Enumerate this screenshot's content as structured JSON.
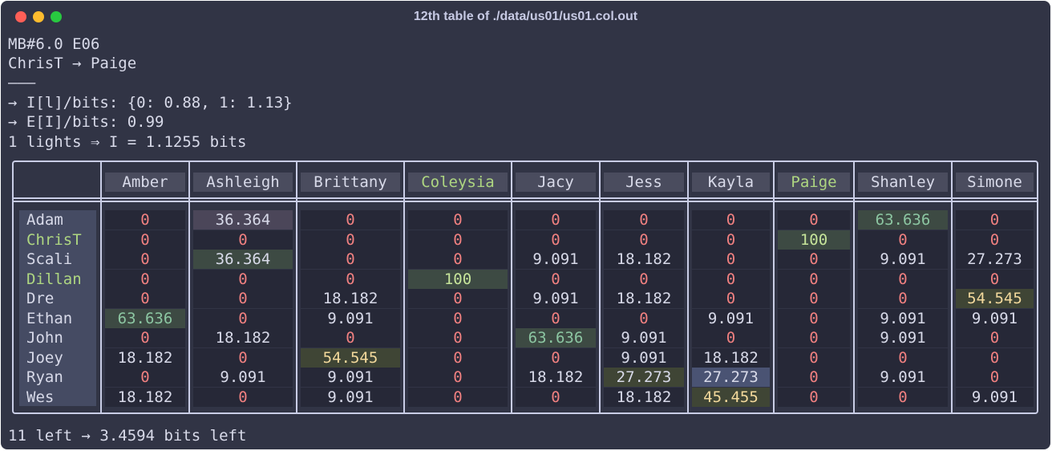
{
  "window": {
    "title": "12th table of ./data/us01/us01.col.out"
  },
  "info_lines": [
    "MB#6.0 E06",
    "ChrisT → Paige",
    "———",
    "→ I[l]/bits: {0: 0.88, 1: 1.13}",
    "→ E[I]/bits: 0.99",
    "1 lights ⇒ I = 1.1255 bits"
  ],
  "table": {
    "columns": [
      "Amber",
      "Ashleigh",
      "Brittany",
      "Coleysia",
      "Jacy",
      "Jess",
      "Kayla",
      "Paige",
      "Shanley",
      "Simone"
    ],
    "rows": [
      {
        "name": "Adam",
        "values": [
          "0",
          "36.364",
          "0",
          "0",
          "0",
          "0",
          "0",
          "0",
          "63.636",
          "0"
        ]
      },
      {
        "name": "ChrisT",
        "values": [
          "0",
          "0",
          "0",
          "0",
          "0",
          "0",
          "0",
          "100",
          "0",
          "0"
        ]
      },
      {
        "name": "Scali",
        "values": [
          "0",
          "36.364",
          "0",
          "0",
          "9.091",
          "18.182",
          "0",
          "0",
          "9.091",
          "27.273"
        ]
      },
      {
        "name": "Dillan",
        "values": [
          "0",
          "0",
          "0",
          "100",
          "0",
          "0",
          "0",
          "0",
          "0",
          "0"
        ]
      },
      {
        "name": "Dre",
        "values": [
          "0",
          "0",
          "18.182",
          "0",
          "9.091",
          "18.182",
          "0",
          "0",
          "0",
          "54.545"
        ]
      },
      {
        "name": "Ethan",
        "values": [
          "63.636",
          "0",
          "9.091",
          "0",
          "0",
          "0",
          "9.091",
          "0",
          "9.091",
          "9.091"
        ]
      },
      {
        "name": "John",
        "values": [
          "0",
          "18.182",
          "0",
          "0",
          "63.636",
          "9.091",
          "0",
          "0",
          "9.091",
          "0"
        ]
      },
      {
        "name": "Joey",
        "values": [
          "18.182",
          "0",
          "54.545",
          "0",
          "0",
          "9.091",
          "18.182",
          "0",
          "0",
          "0"
        ]
      },
      {
        "name": "Ryan",
        "values": [
          "0",
          "9.091",
          "9.091",
          "0",
          "18.182",
          "27.273",
          "27.273",
          "0",
          "9.091",
          "0"
        ]
      },
      {
        "name": "Wes",
        "values": [
          "18.182",
          "0",
          "9.091",
          "0",
          "0",
          "18.182",
          "45.455",
          "0",
          "0",
          "9.091"
        ]
      }
    ]
  },
  "footer": {
    "status": "11 left → 3.4594 bits left"
  },
  "colors": {
    "background": "#313445",
    "text": "#d8dae9",
    "zero": "#f08080",
    "highlight_name": "#aed681",
    "green_text": "#8cc6a2",
    "yellow_text": "#f3d99c",
    "lime_text": "#c6e49a",
    "cell_bg": "#262837",
    "cell_bg_hl_green": "#3d4a43",
    "cell_bg_hl_purple": "#4b4659",
    "cell_bg_hl_blue": "#4a5373",
    "cell_bg_hl_olive": "#3f4535"
  }
}
